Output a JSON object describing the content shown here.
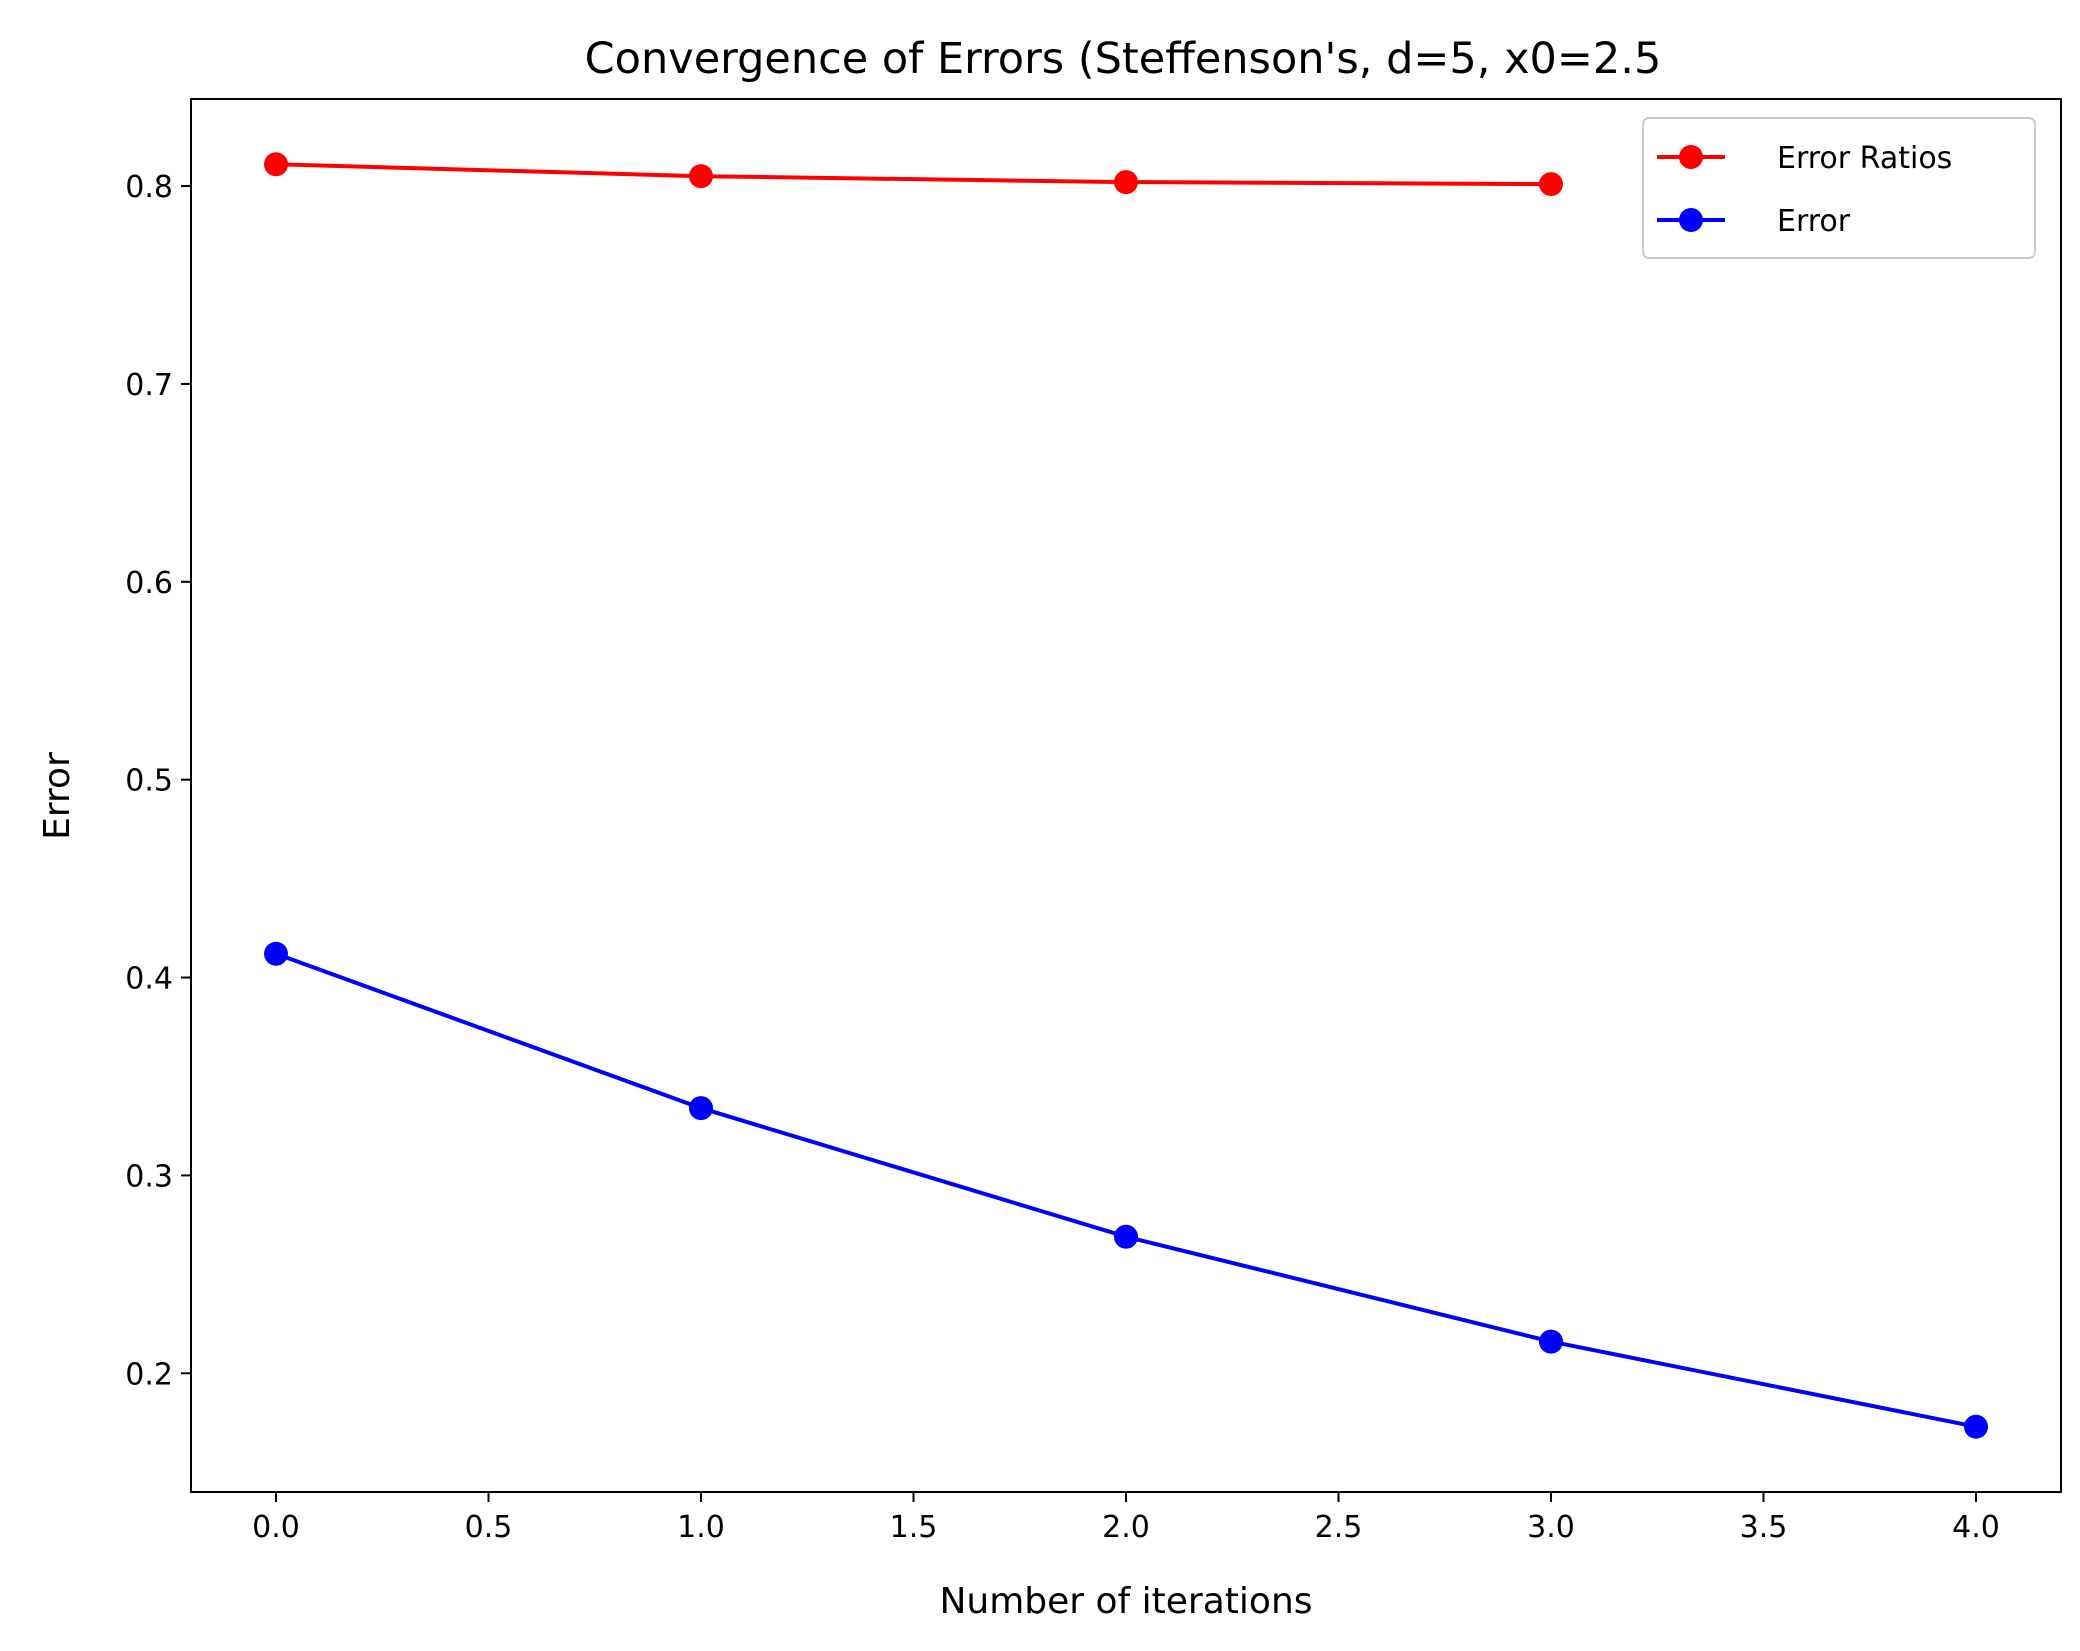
{
  "chart_data": {
    "type": "line",
    "title": "Convergence of Errors (Steffenson's, d=5, x0=2.5",
    "xlabel": "Number of iterations",
    "ylabel": "Error",
    "xlim": [
      -0.2,
      4.2
    ],
    "ylim": [
      0.14,
      0.844
    ],
    "xticks": [
      0.0,
      0.5,
      1.0,
      1.5,
      2.0,
      2.5,
      3.0,
      3.5,
      4.0
    ],
    "xtick_labels": [
      "0.0",
      "0.5",
      "1.0",
      "1.5",
      "2.0",
      "2.5",
      "3.0",
      "3.5",
      "4.0"
    ],
    "yticks": [
      0.2,
      0.3,
      0.4,
      0.5,
      0.6,
      0.7,
      0.8
    ],
    "ytick_labels": [
      "0.2",
      "0.3",
      "0.4",
      "0.5",
      "0.6",
      "0.7",
      "0.8"
    ],
    "grid": false,
    "legend_position": "top-right",
    "series": [
      {
        "name": "Error Ratios",
        "color": "#ff0000",
        "marker": "circle",
        "x": [
          0,
          1,
          2,
          3
        ],
        "y": [
          0.811,
          0.805,
          0.802,
          0.801
        ]
      },
      {
        "name": "Error",
        "color": "#0000ff",
        "marker": "circle",
        "x": [
          0,
          1,
          2,
          3,
          4
        ],
        "y": [
          0.412,
          0.334,
          0.269,
          0.216,
          0.173
        ]
      }
    ]
  }
}
